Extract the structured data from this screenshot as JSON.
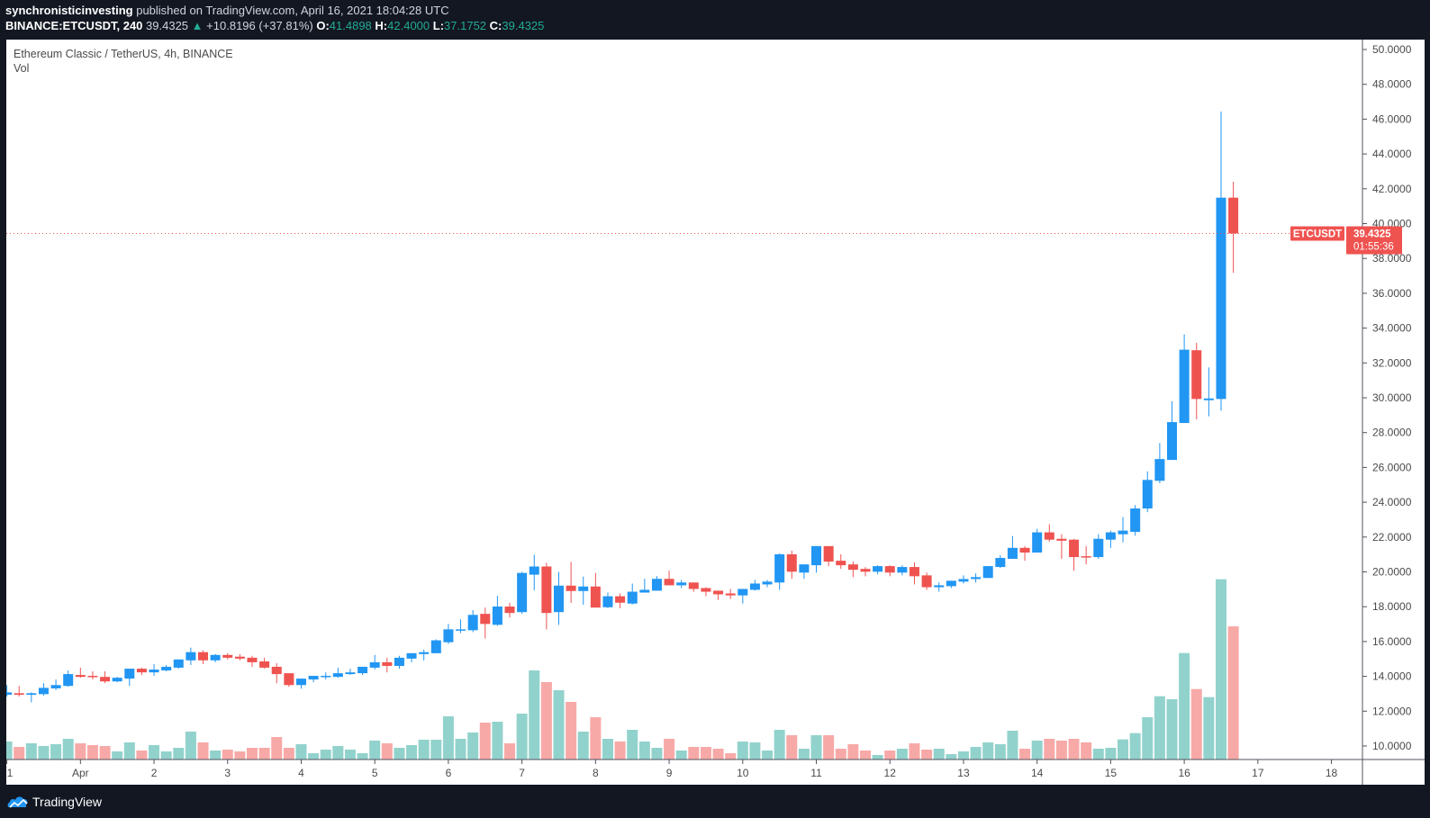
{
  "header": {
    "author": "synchronisticinvesting",
    "published": "published on TradingView.com, April 16, 2021 18:04:28 UTC",
    "symbol": "BINANCE:ETCUSDT, 240",
    "last": "39.4325",
    "arrow": "▲",
    "change": "+10.8196 (+37.81%)",
    "o_label": "O:",
    "o": "41.4898",
    "h_label": "H:",
    "h": "42.4000",
    "l_label": "L:",
    "l": "37.1752",
    "c_label": "C:",
    "c": "39.4325"
  },
  "legend": {
    "title": "Ethereum Classic / TetherUS, 4h, BINANCE",
    "vol": "Vol"
  },
  "price_tag": {
    "symbol": "ETCUSDT",
    "price": "39.4325",
    "countdown": "01:55:36"
  },
  "footer": {
    "brand": "TradingView"
  },
  "colors": {
    "up": "#2196f3",
    "down": "#ef5350",
    "vol_up": "#92d2cc",
    "vol_down": "#f7a9a7",
    "accent": "#22ab94"
  },
  "chart_data": {
    "type": "candlestick",
    "title": "Ethereum Classic / TetherUS, 4h, BINANCE",
    "interval": "4h",
    "ylim": [
      9.2,
      51
    ],
    "y_ticks": [
      "10.0000",
      "12.0000",
      "14.0000",
      "16.0000",
      "18.0000",
      "20.0000",
      "22.0000",
      "24.0000",
      "26.0000",
      "28.0000",
      "30.0000",
      "32.0000",
      "34.0000",
      "36.0000",
      "38.0000",
      "40.0000",
      "42.0000",
      "44.0000",
      "46.0000",
      "48.0000",
      "50.0000"
    ],
    "x_ticks": [
      {
        "label": "1",
        "candle_index": 0
      },
      {
        "label": "Apr",
        "candle_index": 6
      },
      {
        "label": "2",
        "candle_index": 12
      },
      {
        "label": "3",
        "candle_index": 18
      },
      {
        "label": "4",
        "candle_index": 24
      },
      {
        "label": "5",
        "candle_index": 30
      },
      {
        "label": "6",
        "candle_index": 36
      },
      {
        "label": "7",
        "candle_index": 42
      },
      {
        "label": "8",
        "candle_index": 48
      },
      {
        "label": "9",
        "candle_index": 54
      },
      {
        "label": "10",
        "candle_index": 60
      },
      {
        "label": "11",
        "candle_index": 66
      },
      {
        "label": "12",
        "candle_index": 72
      },
      {
        "label": "13",
        "candle_index": 78
      },
      {
        "label": "14",
        "candle_index": 84
      },
      {
        "label": "15",
        "candle_index": 90
      },
      {
        "label": "16",
        "candle_index": 96
      },
      {
        "label": "17",
        "candle_index": 102
      },
      {
        "label": "18",
        "candle_index": 108
      }
    ],
    "ohlc_fields": [
      "open",
      "high",
      "low",
      "close"
    ],
    "ohlc": [
      [
        12.94,
        13.5,
        12.84,
        13.08
      ],
      [
        13.03,
        13.45,
        12.84,
        12.94
      ],
      [
        12.94,
        13.08,
        12.51,
        13.03
      ],
      [
        12.98,
        13.61,
        12.89,
        13.34
      ],
      [
        13.31,
        13.82,
        13.21,
        13.5
      ],
      [
        13.45,
        14.34,
        13.4,
        14.13
      ],
      [
        14.08,
        14.5,
        13.92,
        13.97
      ],
      [
        14.03,
        14.29,
        13.82,
        13.97
      ],
      [
        13.97,
        14.29,
        13.61,
        13.71
      ],
      [
        13.71,
        13.97,
        13.66,
        13.92
      ],
      [
        13.87,
        14.44,
        13.45,
        14.44
      ],
      [
        14.44,
        14.5,
        14.08,
        14.23
      ],
      [
        14.23,
        14.71,
        14.03,
        14.39
      ],
      [
        14.34,
        14.65,
        14.29,
        14.55
      ],
      [
        14.5,
        14.97,
        14.44,
        14.97
      ],
      [
        14.92,
        15.65,
        14.65,
        15.39
      ],
      [
        15.39,
        15.49,
        14.71,
        14.92
      ],
      [
        14.92,
        15.28,
        14.81,
        15.23
      ],
      [
        15.23,
        15.33,
        14.97,
        15.07
      ],
      [
        15.13,
        15.28,
        14.92,
        15.02
      ],
      [
        15.07,
        15.18,
        14.55,
        14.81
      ],
      [
        14.86,
        15.07,
        14.44,
        14.5
      ],
      [
        14.55,
        14.76,
        13.61,
        14.13
      ],
      [
        14.18,
        14.18,
        13.4,
        13.5
      ],
      [
        13.5,
        13.87,
        13.29,
        13.87
      ],
      [
        13.82,
        14.03,
        13.66,
        14.03
      ],
      [
        13.97,
        14.23,
        13.82,
        14.03
      ],
      [
        13.97,
        14.5,
        13.92,
        14.18
      ],
      [
        14.13,
        14.44,
        14.08,
        14.23
      ],
      [
        14.18,
        14.55,
        14.08,
        14.55
      ],
      [
        14.5,
        15.23,
        14.39,
        14.81
      ],
      [
        14.81,
        15.07,
        14.23,
        14.6
      ],
      [
        14.6,
        15.18,
        14.44,
        15.07
      ],
      [
        15.02,
        15.33,
        14.81,
        15.33
      ],
      [
        15.28,
        15.54,
        14.92,
        15.39
      ],
      [
        15.33,
        16.12,
        15.33,
        16.07
      ],
      [
        15.96,
        17.01,
        15.86,
        16.7
      ],
      [
        16.65,
        17.27,
        16.49,
        16.7
      ],
      [
        16.65,
        17.8,
        16.54,
        17.53
      ],
      [
        17.59,
        17.95,
        16.17,
        17.01
      ],
      [
        16.96,
        18.63,
        16.91,
        18.01
      ],
      [
        18.01,
        18.22,
        17.38,
        17.64
      ],
      [
        17.69,
        20.0,
        17.59,
        19.94
      ],
      [
        19.84,
        20.99,
        18.95,
        20.31
      ],
      [
        20.31,
        20.52,
        16.7,
        17.64
      ],
      [
        17.69,
        20.0,
        16.96,
        19.21
      ],
      [
        19.21,
        20.57,
        18.22,
        18.9
      ],
      [
        18.9,
        19.73,
        18.11,
        19.16
      ],
      [
        19.16,
        19.94,
        17.95,
        17.95
      ],
      [
        17.97,
        18.81,
        17.92,
        18.6
      ],
      [
        18.6,
        18.76,
        17.92,
        18.23
      ],
      [
        18.18,
        19.33,
        18.13,
        18.86
      ],
      [
        18.81,
        19.6,
        18.81,
        18.97
      ],
      [
        18.92,
        19.75,
        18.92,
        19.6
      ],
      [
        19.6,
        20.07,
        19.23,
        19.23
      ],
      [
        19.23,
        19.54,
        19.07,
        19.39
      ],
      [
        19.39,
        19.39,
        18.86,
        19.02
      ],
      [
        19.07,
        19.12,
        18.6,
        18.86
      ],
      [
        18.92,
        18.92,
        18.39,
        18.71
      ],
      [
        18.76,
        19.02,
        18.44,
        18.65
      ],
      [
        18.65,
        19.02,
        18.18,
        19.02
      ],
      [
        18.97,
        19.54,
        18.92,
        19.33
      ],
      [
        19.28,
        19.54,
        19.12,
        19.44
      ],
      [
        19.39,
        21.06,
        18.97,
        21.01
      ],
      [
        21.01,
        21.22,
        19.6,
        20.01
      ],
      [
        19.96,
        20.43,
        19.6,
        20.43
      ],
      [
        20.38,
        21.48,
        19.96,
        21.48
      ],
      [
        21.48,
        21.48,
        20.33,
        20.59
      ],
      [
        20.64,
        21.01,
        20.17,
        20.38
      ],
      [
        20.43,
        20.59,
        19.7,
        20.12
      ],
      [
        20.17,
        20.28,
        19.75,
        20.01
      ],
      [
        20.01,
        20.38,
        19.86,
        20.33
      ],
      [
        20.33,
        20.38,
        19.75,
        19.96
      ],
      [
        19.96,
        20.38,
        19.8,
        20.28
      ],
      [
        20.28,
        20.54,
        19.28,
        19.75
      ],
      [
        19.8,
        19.96,
        18.97,
        19.12
      ],
      [
        19.12,
        19.39,
        18.86,
        19.23
      ],
      [
        19.18,
        19.49,
        19.07,
        19.49
      ],
      [
        19.44,
        19.8,
        19.33,
        19.59
      ],
      [
        19.59,
        19.91,
        19.39,
        19.7
      ],
      [
        19.65,
        20.33,
        19.65,
        20.33
      ],
      [
        20.28,
        20.96,
        20.22,
        20.8
      ],
      [
        20.75,
        22.06,
        20.75,
        21.38
      ],
      [
        21.38,
        21.48,
        20.64,
        21.11
      ],
      [
        21.11,
        22.47,
        21.11,
        22.27
      ],
      [
        22.27,
        22.74,
        21.74,
        21.85
      ],
      [
        21.9,
        22.16,
        20.75,
        21.79
      ],
      [
        21.85,
        21.9,
        20.07,
        20.85
      ],
      [
        20.9,
        21.48,
        20.43,
        20.85
      ],
      [
        20.85,
        22.16,
        20.75,
        21.9
      ],
      [
        21.85,
        22.37,
        21.38,
        22.27
      ],
      [
        22.16,
        23.15,
        21.69,
        22.37
      ],
      [
        22.3,
        23.84,
        22.08,
        23.64
      ],
      [
        23.64,
        25.77,
        23.43,
        25.28
      ],
      [
        25.23,
        27.4,
        25.09,
        26.48
      ],
      [
        26.43,
        29.8,
        26.43,
        28.6
      ],
      [
        28.55,
        33.64,
        28.55,
        32.76
      ],
      [
        32.73,
        33.15,
        28.76,
        29.93
      ],
      [
        29.86,
        31.74,
        28.93,
        29.96
      ],
      [
        29.93,
        46.44,
        29.26,
        41.49
      ],
      [
        41.4898,
        42.4,
        37.1752,
        39.4325
      ]
    ],
    "volume_relative": [
      60,
      42,
      54,
      45,
      51,
      69,
      54,
      48,
      45,
      27,
      57,
      30,
      48,
      27,
      39,
      93,
      57,
      30,
      33,
      27,
      39,
      39,
      75,
      39,
      51,
      21,
      33,
      45,
      33,
      21,
      63,
      54,
      39,
      48,
      66,
      66,
      144,
      69,
      90,
      123,
      126,
      54,
      153,
      297,
      258,
      231,
      192,
      93,
      141,
      69,
      60,
      99,
      60,
      39,
      69,
      30,
      42,
      42,
      36,
      21,
      60,
      57,
      30,
      99,
      81,
      36,
      81,
      81,
      36,
      51,
      30,
      15,
      30,
      36,
      54,
      33,
      36,
      18,
      27,
      42,
      57,
      51,
      96,
      36,
      63,
      69,
      63,
      69,
      57,
      36,
      39,
      67,
      88,
      141,
      211,
      201,
      355,
      235,
      208,
      601,
      444
    ],
    "last_price": 39.4325,
    "grid": false,
    "legend": "top-left"
  }
}
